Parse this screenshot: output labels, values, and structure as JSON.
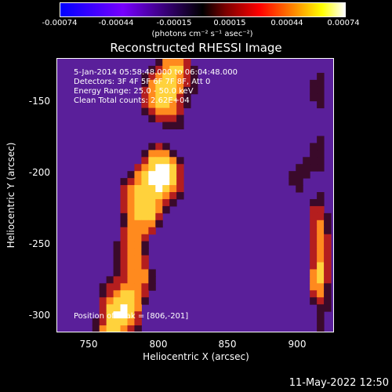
{
  "colorbar": {
    "ticks": [
      "-0.00074",
      "-0.00044",
      "-0.00015",
      "0.00015",
      "0.00044",
      "0.00074"
    ],
    "units": "(photons cm⁻² s⁻¹ asec⁻²)"
  },
  "title": "Reconstructed RHESSI Image",
  "annotations": {
    "time": "5-Jan-2014 05:58:48.000 to 06:04:48.000",
    "detectors": "Detectors: 3F 4F 5F 6F 7F 8F, Att 0",
    "energy": "Energy Range: 25.0 - 50.0 keV",
    "clean": "Clean     Total counts: 2.62E+04",
    "peak": "Position of Peak = [806,-201]"
  },
  "axes": {
    "xlabel": "Heliocentric X (arcsec)",
    "ylabel": "Heliocentric Y (arcsec)",
    "xticks": [
      "750",
      "800",
      "850",
      "900"
    ],
    "yticks": [
      "-150",
      "-200",
      "-250",
      "-300"
    ]
  },
  "timestamp": "11-May-2022 12:50",
  "colors": {
    "background": "#000000",
    "low": "#5a1f9a",
    "mid": "#b41e1e",
    "high": "#ffd23c",
    "peak": "#ffffff"
  }
}
